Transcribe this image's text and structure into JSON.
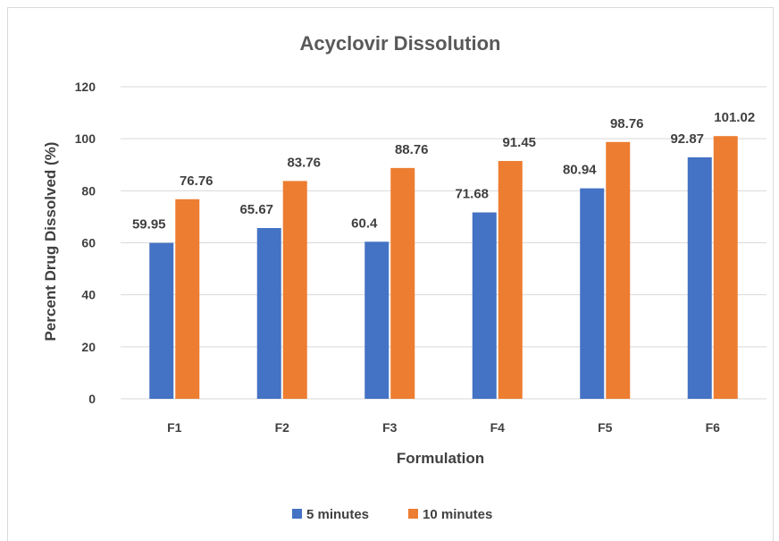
{
  "chart_data": {
    "type": "bar",
    "title": "Acyclovir Dissolution",
    "xlabel": "Formulation",
    "ylabel": "Percent Drug Dissolved (%)",
    "categories": [
      "F1",
      "F2",
      "F3",
      "F4",
      "F5",
      "F6"
    ],
    "series": [
      {
        "name": "5 minutes",
        "color": "#4472c4",
        "values": [
          59.95,
          65.67,
          60.4,
          71.68,
          80.94,
          92.87
        ]
      },
      {
        "name": "10 minutes",
        "color": "#ed7d31",
        "values": [
          76.76,
          83.76,
          88.76,
          91.45,
          98.76,
          101.02
        ]
      }
    ],
    "ylim": [
      0,
      120
    ],
    "yticks": [
      0,
      20,
      40,
      60,
      80,
      100,
      120
    ],
    "grid": true,
    "legend_position": "bottom"
  }
}
